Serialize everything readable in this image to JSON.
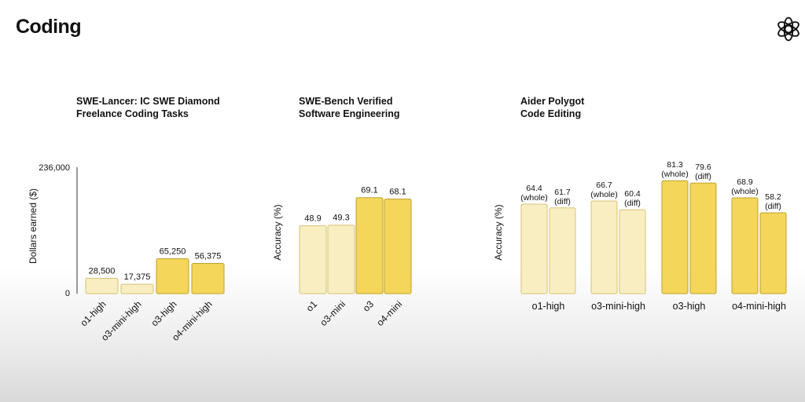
{
  "page": {
    "title": "Coding"
  },
  "logo": {
    "icon": "openai-logo-icon"
  },
  "colors": {
    "light_fill": "#f8eec2",
    "light_stroke": "#d9c274",
    "strong_fill": "#f3d65a",
    "strong_stroke": "#bfa22e"
  },
  "chart_data": [
    {
      "type": "bar",
      "title_lines": [
        "SWE-Lancer: IC SWE Diamond",
        "Freelance Coding Tasks"
      ],
      "categories": [
        "o1-high",
        "o3-mini-high",
        "o3-high",
        "o4-mini-high"
      ],
      "values": [
        28500,
        17375,
        65250,
        56375
      ],
      "value_labels": [
        "28,500",
        "17,375",
        "65,250",
        "56,375"
      ],
      "ylabel": "Dollars earned ($)",
      "ylim": [
        0,
        236000
      ],
      "ytick_labels": [
        "0",
        "236,000"
      ],
      "category_style": [
        "light",
        "light",
        "strong",
        "strong"
      ],
      "xtick_rotation": "rotated",
      "y_axis_line": true
    },
    {
      "type": "bar",
      "title_lines": [
        "SWE-Bench Verified",
        "Software Engineering"
      ],
      "categories": [
        "o1",
        "o3-mini",
        "o3",
        "o4-mini"
      ],
      "values": [
        48.9,
        49.3,
        69.1,
        68.1
      ],
      "value_labels": [
        "48.9",
        "49.3",
        "69.1",
        "68.1"
      ],
      "ylabel": "Accuracy (%)",
      "ylim": [
        0,
        100
      ],
      "category_style": [
        "light",
        "light",
        "strong",
        "strong"
      ],
      "xtick_rotation": "rotated",
      "y_axis_line": false
    },
    {
      "type": "bar",
      "title_lines": [
        "Aider Polygot",
        "Code Editing"
      ],
      "categories": [
        "o1-high",
        "o3-mini-high",
        "o3-high",
        "o4-mini-high"
      ],
      "series": [
        {
          "name": "whole",
          "values": [
            64.4,
            66.7,
            81.3,
            68.9
          ],
          "value_labels": [
            "64.4",
            "66.7",
            "81.3",
            "68.9"
          ],
          "sub_labels": [
            "(whole)",
            "(whole)",
            "(whole)",
            "(whole)"
          ]
        },
        {
          "name": "diff",
          "values": [
            61.7,
            60.4,
            79.6,
            58.2
          ],
          "value_labels": [
            "61.7",
            "60.4",
            "79.6",
            "58.2"
          ],
          "sub_labels": [
            "(diff)",
            "(diff)",
            "(diff)",
            "(diff)"
          ]
        }
      ],
      "ylabel": "Accuracy (%)",
      "ylim": [
        0,
        100
      ],
      "category_style": [
        "light",
        "light",
        "strong",
        "strong"
      ],
      "xtick_rotation": "horizontal",
      "y_axis_line": false
    }
  ]
}
